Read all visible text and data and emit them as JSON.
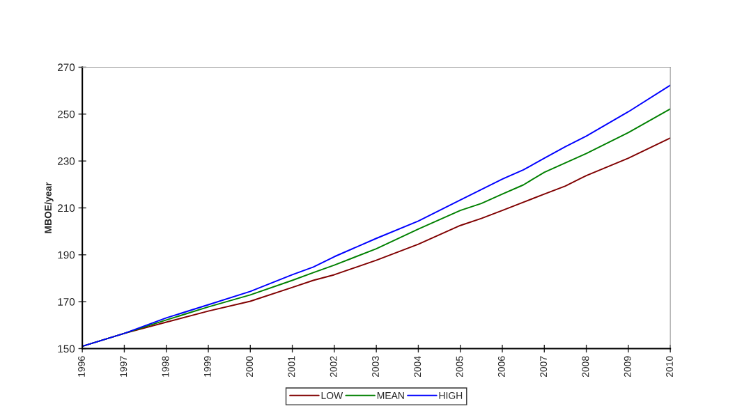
{
  "chart_data": {
    "type": "line",
    "ylabel": "MBOE/year",
    "x": [
      1996,
      1997,
      1998,
      1999,
      2000,
      2001,
      2001.5,
      2002,
      2003,
      2004,
      2005,
      2005.5,
      2006,
      2006.5,
      2007,
      2007.5,
      2008,
      2009,
      2010
    ],
    "series": [
      {
        "name": "LOW",
        "color": "#800000",
        "values": [
          151,
          156.5,
          161.3,
          166.0,
          170.2,
          176.1,
          179.1,
          181.5,
          187.7,
          194.5,
          202.5,
          205.5,
          208.9,
          212.4,
          215.9,
          219.3,
          223.8,
          231.2,
          239.8
        ]
      },
      {
        "name": "MEAN",
        "color": "#008000",
        "values": [
          151,
          156.5,
          162.2,
          167.8,
          172.9,
          179.1,
          182.4,
          185.6,
          192.6,
          201.0,
          208.9,
          211.9,
          215.9,
          219.8,
          225.2,
          229.2,
          233.2,
          242.1,
          252.2
        ]
      },
      {
        "name": "HIGH",
        "color": "#0000ff",
        "values": [
          151,
          156.5,
          163.1,
          168.7,
          174.4,
          181.5,
          184.8,
          189.2,
          197.0,
          204.4,
          213.4,
          217.8,
          222.3,
          226.2,
          231.2,
          236.1,
          240.6,
          251.0,
          262.3
        ]
      }
    ],
    "xlim": [
      1996,
      2010
    ],
    "xticks": [
      1996,
      1997,
      1998,
      1999,
      2000,
      2001,
      2002,
      2003,
      2004,
      2005,
      2006,
      2007,
      2008,
      2009,
      2010
    ],
    "ylim": [
      150,
      270
    ],
    "yticks": [
      150,
      170,
      190,
      210,
      230,
      250,
      270
    ],
    "grid": false,
    "legend": "bottom",
    "marker": "none",
    "line_style": "solid"
  }
}
